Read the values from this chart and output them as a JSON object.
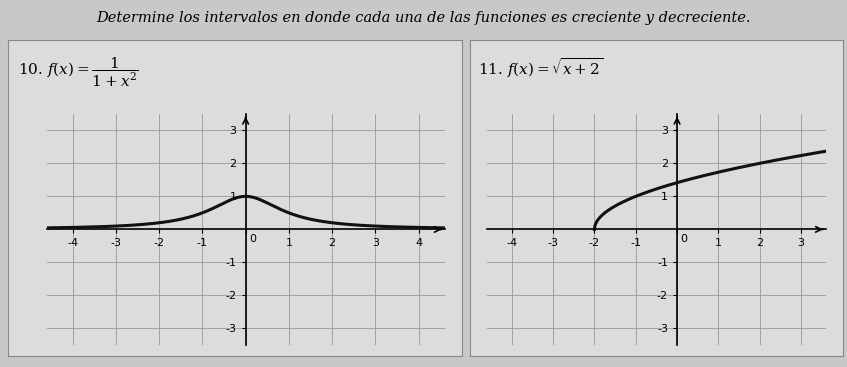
{
  "title": "Determine los intervalos en donde cada una de las funciones es creciente y decreciente.",
  "title_fontsize": 10.5,
  "outer_bg": "#c8c8c8",
  "panel_bg": "#dcdcdc",
  "plot_bg": "#dcdcdc",
  "grid_color": "#999999",
  "curve_color": "#111111",
  "curve_lw": 2.2,
  "label1": "10. $f(x) = \\dfrac{1}{1+x^2}$",
  "label2": "11. $f(x) = \\sqrt{x+2}$",
  "plot1": {
    "xlim": [
      -4.6,
      4.6
    ],
    "ylim": [
      -3.5,
      3.5
    ],
    "xticks": [
      -4,
      -3,
      -2,
      -1,
      0,
      1,
      2,
      3,
      4
    ],
    "yticks": [
      -3,
      -2,
      -1,
      1,
      2,
      3
    ]
  },
  "plot2": {
    "xlim": [
      -4.6,
      3.6
    ],
    "ylim": [
      -3.5,
      3.5
    ],
    "xticks": [
      -4,
      -3,
      -2,
      -1,
      0,
      1,
      2,
      3
    ],
    "yticks": [
      -3,
      -2,
      -1,
      1,
      2,
      3
    ]
  }
}
